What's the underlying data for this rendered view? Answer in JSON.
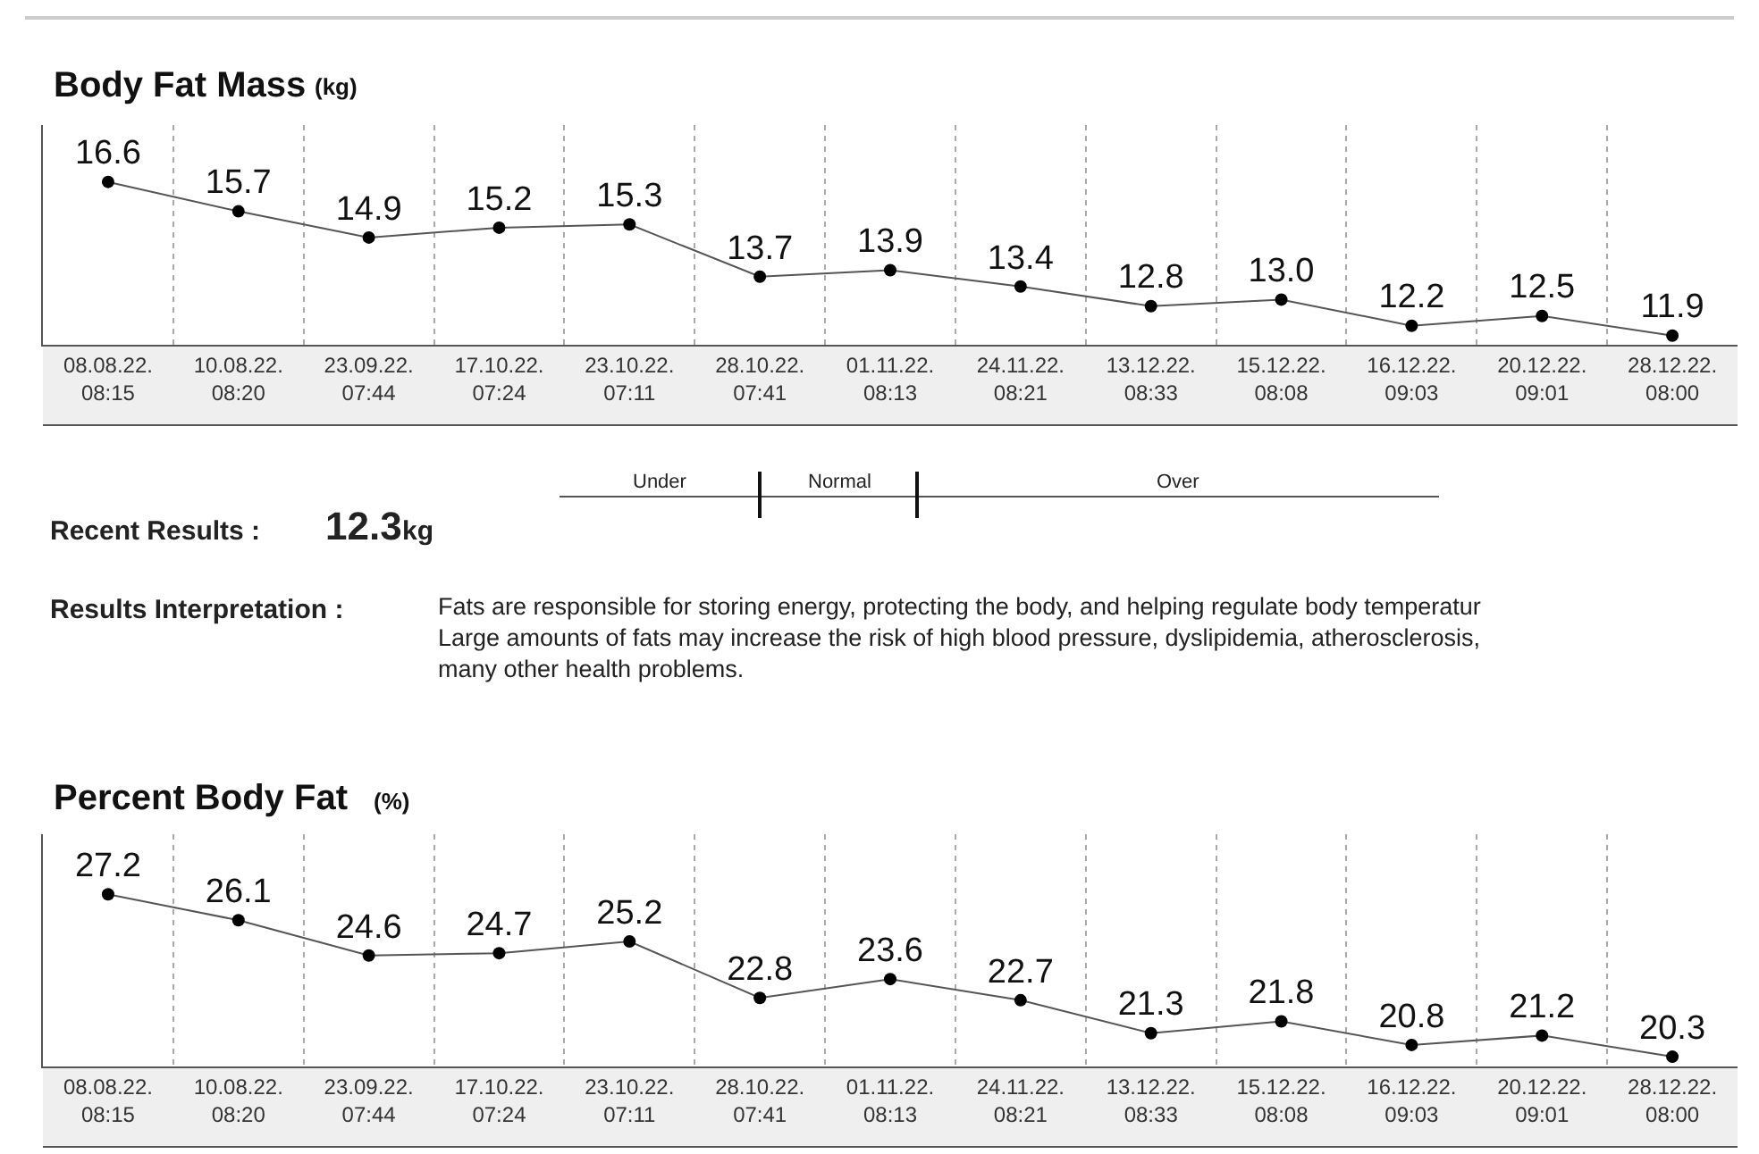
{
  "chart_data": [
    {
      "type": "line",
      "title": "Body Fat Mass",
      "subtitle": "(kg)",
      "categories": [
        "08.08.22.\n08:15",
        "10.08.22.\n08:20",
        "23.09.22.\n07:44",
        "17.10.22.\n07:24",
        "23.10.22.\n07:11",
        "28.10.22.\n07:41",
        "01.11.22.\n08:13",
        "24.11.22.\n08:21",
        "13.12.22.\n08:33",
        "15.12.22.\n08:08",
        "16.12.22.\n09:03",
        "20.12.22.\n09:01",
        "28.12.22.\n08:00"
      ],
      "series": [
        {
          "color": "#000000",
          "values": [
            16.6,
            15.7,
            14.9,
            15.2,
            15.3,
            13.7,
            13.9,
            13.4,
            12.8,
            13.0,
            12.2,
            12.5,
            11.9
          ],
          "value_labels": [
            "16.6",
            "15.7",
            "14.9",
            "15.2",
            "15.3",
            "13.7",
            "13.9",
            "13.4",
            "12.8",
            "13.0",
            "12.2",
            "12.5",
            "11.9"
          ]
        }
      ],
      "marker": "circle",
      "line_style": "solid",
      "grid": "x",
      "tick_labels": "x"
    },
    {
      "type": "other",
      "annotations": [
        "Recent Results :",
        "12.3",
        "kg",
        "Under",
        "Normal",
        "Over",
        "Results Interpretation :",
        "Fats are responsible for storing energy, protecting the body, and helping regulate body temperatur\nLarge amounts of fats may increase the risk of high blood pressure, dyslipidemia, atherosclerosis,\nmany other health problems."
      ]
    },
    {
      "type": "line",
      "title": "Percent Body Fat",
      "subtitle": "(%)",
      "categories": [
        "08.08.22.\n08:15",
        "10.08.22.\n08:20",
        "23.09.22.\n07:44",
        "17.10.22.\n07:24",
        "23.10.22.\n07:11",
        "28.10.22.\n07:41",
        "01.11.22.\n08:13",
        "24.11.22.\n08:21",
        "13.12.22.\n08:33",
        "15.12.22.\n08:08",
        "16.12.22.\n09:03",
        "20.12.22.\n09:01",
        "28.12.22.\n08:00"
      ],
      "series": [
        {
          "color": "#000000",
          "values": [
            27.2,
            26.1,
            24.6,
            24.7,
            25.2,
            22.8,
            23.6,
            22.7,
            21.3,
            21.8,
            20.8,
            21.2,
            20.3
          ]
        }
      ],
      "data_labels": true,
      "marker": "circle",
      "line_style": "solid",
      "grid": "x",
      "tick_labels": "x"
    }
  ]
}
